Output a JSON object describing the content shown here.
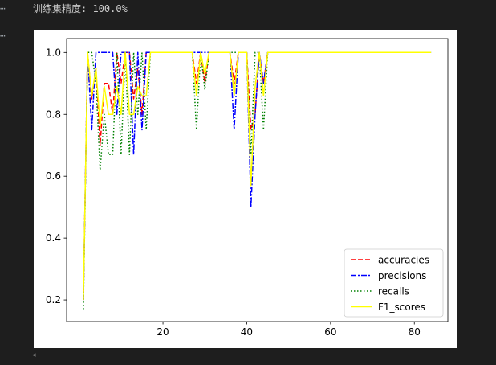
{
  "cell": {
    "gutter_label_1": "⋯",
    "gutter_label_2": "⋯",
    "stdout": "训练集精度: 100.0%"
  },
  "colors": {
    "background": "#1e1e1e",
    "panel": "#ffffff",
    "text": "#cccccc"
  },
  "scroll_arrow": "◂",
  "chart_data": {
    "type": "line",
    "title": "",
    "xlabel": "",
    "ylabel": "",
    "xlim": [
      -3,
      88
    ],
    "ylim": [
      0.13,
      1.045
    ],
    "xticks": [
      20,
      40,
      60,
      80
    ],
    "yticks": [
      0.2,
      0.4,
      0.6,
      0.8,
      1.0
    ],
    "xtick_labels": [
      "20",
      "40",
      "60",
      "80"
    ],
    "ytick_labels": [
      "0.2",
      "0.4",
      "0.6",
      "0.8",
      "1.0"
    ],
    "grid": false,
    "legend_position": "lower-right",
    "x": [
      1,
      2,
      3,
      4,
      5,
      6,
      7,
      8,
      9,
      10,
      11,
      12,
      13,
      14,
      15,
      16,
      17,
      18,
      19,
      20,
      21,
      22,
      23,
      24,
      25,
      26,
      27,
      28,
      29,
      30,
      31,
      32,
      33,
      34,
      35,
      36,
      37,
      38,
      39,
      40,
      41,
      42,
      43,
      44,
      45,
      46,
      47,
      48,
      49,
      50,
      51,
      52,
      53,
      54,
      55,
      56,
      57,
      58,
      59,
      60,
      61,
      62,
      63,
      64,
      65,
      66,
      67,
      68,
      69,
      70,
      71,
      72,
      73,
      74,
      75,
      76,
      77,
      78,
      79,
      80,
      81,
      82,
      83,
      84
    ],
    "series": [
      {
        "name": "accuracies",
        "color": "#ff0000",
        "style": "dashed",
        "values": [
          0.2,
          1.0,
          0.85,
          0.95,
          0.7,
          0.9,
          0.9,
          0.8,
          1.0,
          0.9,
          1.0,
          1.0,
          0.85,
          0.95,
          0.8,
          1.0,
          1.0,
          1.0,
          1.0,
          1.0,
          1.0,
          1.0,
          1.0,
          1.0,
          1.0,
          1.0,
          1.0,
          0.9,
          1.0,
          0.9,
          1.0,
          1.0,
          1.0,
          1.0,
          1.0,
          1.0,
          0.9,
          1.0,
          1.0,
          1.0,
          0.75,
          0.8,
          1.0,
          0.9,
          1.0,
          1.0,
          1.0,
          1.0,
          1.0,
          1.0,
          1.0,
          1.0,
          1.0,
          1.0,
          1.0,
          1.0,
          1.0,
          1.0,
          1.0,
          1.0,
          1.0,
          1.0,
          1.0,
          1.0,
          1.0,
          1.0,
          1.0,
          1.0,
          1.0,
          1.0,
          1.0,
          1.0,
          1.0,
          1.0,
          1.0,
          1.0,
          1.0,
          1.0,
          1.0,
          1.0,
          1.0,
          1.0,
          1.0,
          1.0
        ]
      },
      {
        "name": "precisions",
        "color": "#0000ff",
        "style": "dashdot",
        "values": [
          0.2,
          1.0,
          0.75,
          1.0,
          1.0,
          1.0,
          1.0,
          1.0,
          0.8,
          1.0,
          1.0,
          1.0,
          0.67,
          1.0,
          0.75,
          1.0,
          1.0,
          1.0,
          1.0,
          1.0,
          1.0,
          1.0,
          1.0,
          1.0,
          1.0,
          1.0,
          1.0,
          1.0,
          1.0,
          1.0,
          1.0,
          1.0,
          1.0,
          1.0,
          1.0,
          1.0,
          0.75,
          1.0,
          1.0,
          1.0,
          0.5,
          0.8,
          1.0,
          0.9,
          1.0,
          1.0,
          1.0,
          1.0,
          1.0,
          1.0,
          1.0,
          1.0,
          1.0,
          1.0,
          1.0,
          1.0,
          1.0,
          1.0,
          1.0,
          1.0,
          1.0,
          1.0,
          1.0,
          1.0,
          1.0,
          1.0,
          1.0,
          1.0,
          1.0,
          1.0,
          1.0,
          1.0,
          1.0,
          1.0,
          1.0,
          1.0,
          1.0,
          1.0,
          1.0,
          1.0,
          1.0,
          1.0,
          1.0,
          1.0
        ]
      },
      {
        "name": "recalls",
        "color": "#008000",
        "style": "dotted",
        "values": [
          0.17,
          1.0,
          1.0,
          0.9,
          0.62,
          0.8,
          0.67,
          0.67,
          1.0,
          0.67,
          1.0,
          0.67,
          1.0,
          0.8,
          1.0,
          0.75,
          1.0,
          1.0,
          1.0,
          1.0,
          1.0,
          1.0,
          1.0,
          1.0,
          1.0,
          1.0,
          1.0,
          0.75,
          1.0,
          0.88,
          1.0,
          1.0,
          1.0,
          1.0,
          1.0,
          1.0,
          1.0,
          1.0,
          1.0,
          1.0,
          0.67,
          1.0,
          1.0,
          0.75,
          1.0,
          1.0,
          1.0,
          1.0,
          1.0,
          1.0,
          1.0,
          1.0,
          1.0,
          1.0,
          1.0,
          1.0,
          1.0,
          1.0,
          1.0,
          1.0,
          1.0,
          1.0,
          1.0,
          1.0,
          1.0,
          1.0,
          1.0,
          1.0,
          1.0,
          1.0,
          1.0,
          1.0,
          1.0,
          1.0,
          1.0,
          1.0,
          1.0,
          1.0,
          1.0,
          1.0,
          1.0,
          1.0,
          1.0,
          1.0
        ]
      },
      {
        "name": "F1_scores",
        "color": "#ffff00",
        "style": "solid",
        "values": [
          0.2,
          1.0,
          0.86,
          0.95,
          0.76,
          0.89,
          0.8,
          0.8,
          0.89,
          0.8,
          1.0,
          0.8,
          0.8,
          0.89,
          0.86,
          0.86,
          1.0,
          1.0,
          1.0,
          1.0,
          1.0,
          1.0,
          1.0,
          1.0,
          1.0,
          1.0,
          1.0,
          0.86,
          1.0,
          0.93,
          1.0,
          1.0,
          1.0,
          1.0,
          1.0,
          1.0,
          0.86,
          1.0,
          1.0,
          1.0,
          0.57,
          0.89,
          1.0,
          0.86,
          1.0,
          1.0,
          1.0,
          1.0,
          1.0,
          1.0,
          1.0,
          1.0,
          1.0,
          1.0,
          1.0,
          1.0,
          1.0,
          1.0,
          1.0,
          1.0,
          1.0,
          1.0,
          1.0,
          1.0,
          1.0,
          1.0,
          1.0,
          1.0,
          1.0,
          1.0,
          1.0,
          1.0,
          1.0,
          1.0,
          1.0,
          1.0,
          1.0,
          1.0,
          1.0,
          1.0,
          1.0,
          1.0,
          1.0,
          1.0
        ]
      }
    ]
  }
}
